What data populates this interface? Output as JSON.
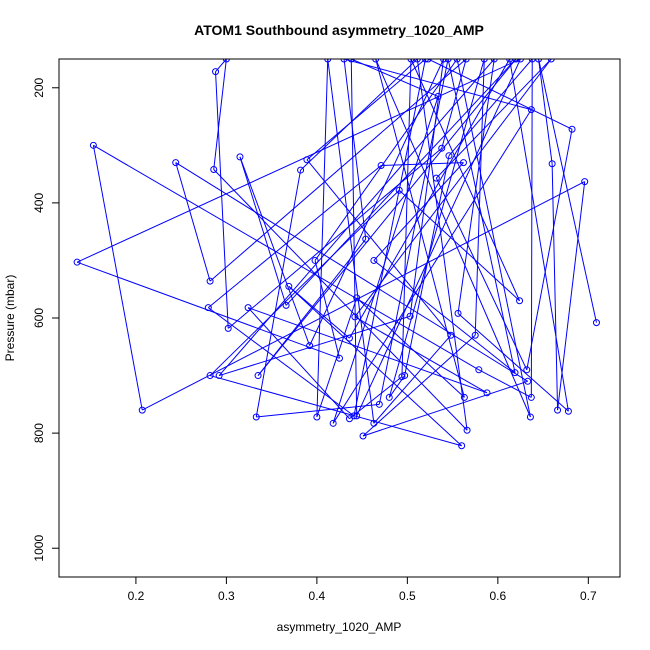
{
  "chart_data": {
    "type": "line",
    "title": "ATOM1 Southbound asymmetry_1020_AMP",
    "xlabel": "asymmetry_1020_AMP",
    "ylabel": "Pressure (mbar)",
    "xlim": [
      0.115,
      0.735
    ],
    "ylim": [
      1050,
      150
    ],
    "y_reversed": true,
    "xticks": [
      0.2,
      0.3,
      0.4,
      0.5,
      0.6,
      0.7
    ],
    "xtick_labels": [
      "0.2",
      "0.3",
      "0.4",
      "0.5",
      "0.6",
      "0.7"
    ],
    "yticks": [
      200,
      400,
      600,
      800,
      1000
    ],
    "ytick_labels": [
      "200",
      "400",
      "600",
      "800",
      "1000"
    ],
    "grid": false,
    "series": [
      {
        "color": "#0000ff",
        "marker": "open-circle",
        "points": [
          [
            0.709,
            608
          ],
          [
            0.645,
            150
          ],
          [
            0.66,
            332
          ],
          [
            0.666,
            760
          ],
          [
            0.696,
            363
          ],
          [
            0.207,
            760
          ],
          [
            0.153,
            300
          ],
          [
            0.579,
            690
          ],
          [
            0.637,
            738
          ],
          [
            0.638,
            150
          ],
          [
            0.546,
            318
          ],
          [
            0.497,
            700
          ],
          [
            0.48,
            738
          ],
          [
            0.585,
            150
          ],
          [
            0.575,
            630
          ],
          [
            0.451,
            805
          ],
          [
            0.633,
            710
          ],
          [
            0.244,
            330
          ],
          [
            0.282,
            536
          ],
          [
            0.565,
            150
          ],
          [
            0.538,
            305
          ],
          [
            0.302,
            618
          ],
          [
            0.288,
            172
          ],
          [
            0.3,
            150
          ],
          [
            0.286,
            342
          ],
          [
            0.566,
            795
          ],
          [
            0.511,
            150
          ],
          [
            0.382,
            343
          ],
          [
            0.333,
            772
          ],
          [
            0.469,
            750
          ],
          [
            0.545,
            150
          ],
          [
            0.619,
            695
          ],
          [
            0.463,
            500
          ],
          [
            0.562,
            330
          ],
          [
            0.471,
            335
          ],
          [
            0.28,
            582
          ],
          [
            0.441,
            770
          ],
          [
            0.52,
            150
          ],
          [
            0.389,
            325
          ],
          [
            0.548,
            630
          ],
          [
            0.463,
            783
          ],
          [
            0.412,
            150
          ],
          [
            0.4,
            772
          ],
          [
            0.444,
            565
          ],
          [
            0.563,
            738
          ],
          [
            0.465,
            150
          ],
          [
            0.636,
            772
          ],
          [
            0.555,
            150
          ],
          [
            0.398,
            500
          ],
          [
            0.425,
            670
          ],
          [
            0.135,
            503
          ],
          [
            0.625,
            150
          ],
          [
            0.444,
            770
          ],
          [
            0.438,
            150
          ],
          [
            0.534,
            215
          ],
          [
            0.418,
            783
          ],
          [
            0.637,
            238
          ],
          [
            0.43,
            150
          ],
          [
            0.454,
            463
          ],
          [
            0.335,
            700
          ],
          [
            0.62,
            150
          ],
          [
            0.366,
            578
          ],
          [
            0.315,
            320
          ],
          [
            0.392,
            648
          ],
          [
            0.54,
            150
          ],
          [
            0.503,
            597
          ],
          [
            0.292,
            700
          ],
          [
            0.596,
            150
          ],
          [
            0.556,
            592
          ],
          [
            0.678,
            762
          ],
          [
            0.613,
            150
          ],
          [
            0.436,
            635
          ],
          [
            0.369,
            545
          ],
          [
            0.56,
            822
          ],
          [
            0.282,
            700
          ],
          [
            0.491,
            378
          ],
          [
            0.624,
            570
          ],
          [
            0.504,
            150
          ],
          [
            0.494,
            702
          ],
          [
            0.436,
            775
          ],
          [
            0.324,
            582
          ],
          [
            0.588,
            730
          ],
          [
            0.442,
            598
          ],
          [
            0.659,
            150
          ],
          [
            0.532,
            357
          ],
          [
            0.632,
            690
          ],
          [
            0.682,
            272
          ],
          [
            0.523,
            150
          ]
        ]
      }
    ]
  }
}
